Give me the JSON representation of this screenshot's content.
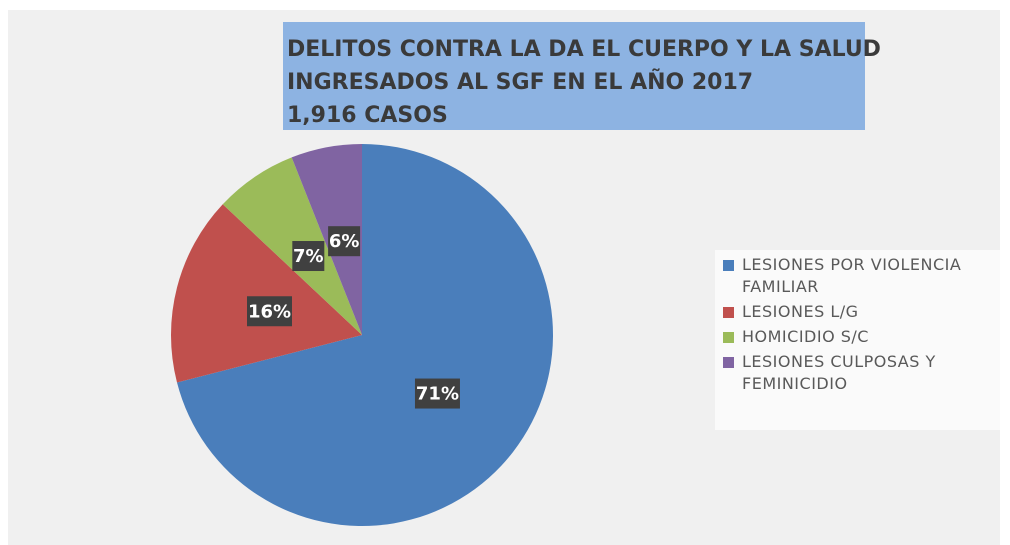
{
  "chart_data": {
    "type": "pie",
    "title": [
      "DELITOS CONTRA LA DA EL CUERPO Y LA SALUD",
      "INGRESADOS AL SGF EN EL AÑO 2017",
      "1,916 CASOS"
    ],
    "categories": [
      "LESIONES POR VIOLENCIA FAMILIAR",
      "LESIONES L/G",
      "HOMICIDIO S/C",
      "LESIONES CULPOSAS Y FEMINICIDIO"
    ],
    "values": [
      71,
      16,
      7,
      6
    ],
    "value_labels": [
      "71%",
      "16%",
      "7%",
      "6%"
    ],
    "colors": [
      "#4a7ebb",
      "#c0504d",
      "#9bbb59",
      "#8064a2"
    ],
    "legend": "right"
  }
}
